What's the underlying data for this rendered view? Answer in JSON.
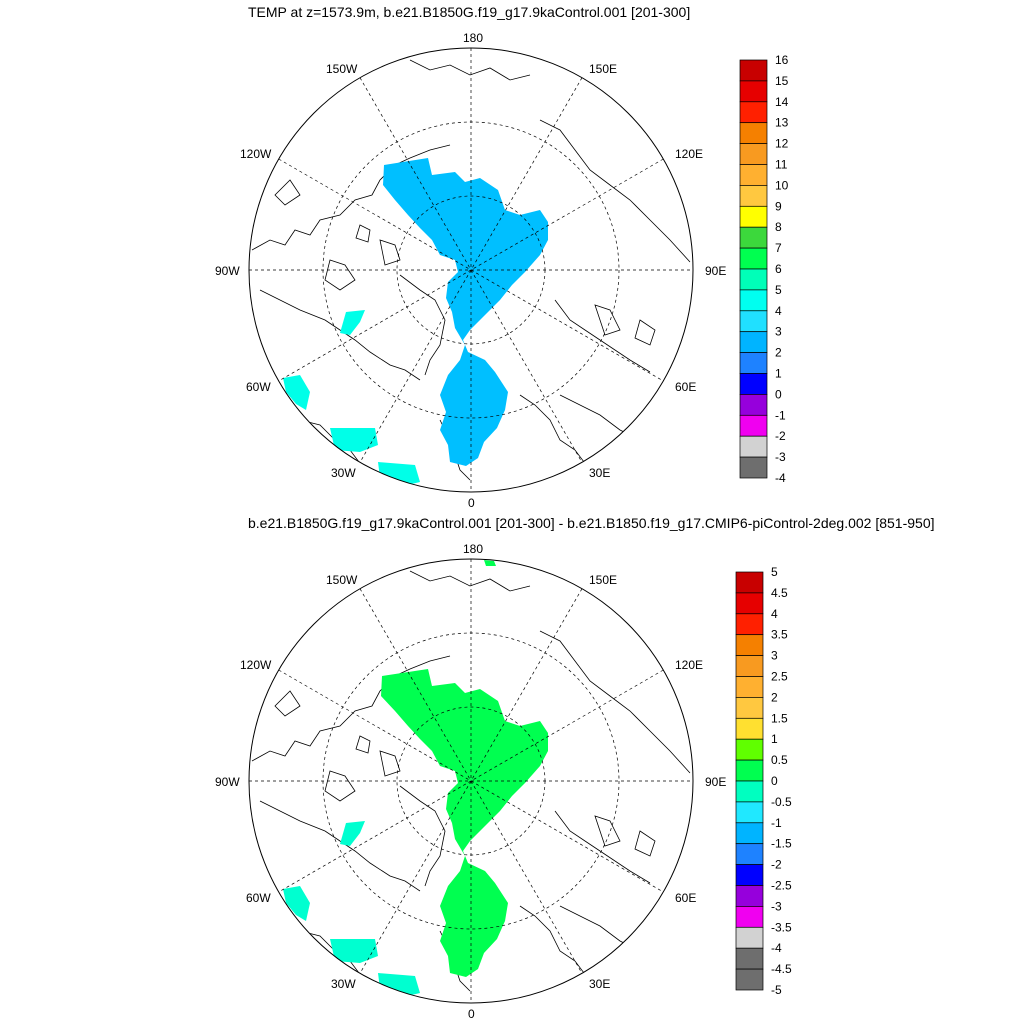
{
  "panels": [
    {
      "title": "TEMP at z=1573.9m, b.e21.B1850G.f19_g17.9kaControl.001 [201-300]",
      "lon_labels": {
        "top": "180",
        "bottom": "0",
        "left": "90W",
        "right": "90E",
        "ul1": "150W",
        "ul2": "120W",
        "ur1": "150E",
        "ur2": "120E",
        "ll1": "60W",
        "ll2": "30W",
        "lr1": "60E",
        "lr2": "30E"
      },
      "colorbar": {
        "labels": [
          "16",
          "15",
          "14",
          "13",
          "12",
          "11",
          "10",
          "9",
          "8",
          "7",
          "6",
          "5",
          "4",
          "3",
          "2",
          "1",
          "0",
          "-1",
          "-2",
          "-3",
          "-4"
        ],
        "colors": [
          "#c80000",
          "#e60000",
          "#ff2000",
          "#f58000",
          "#f89a20",
          "#ffb030",
          "#ffc840",
          "#ffff00",
          "#3cd83c",
          "#00ff50",
          "#00ffb8",
          "#00fff0",
          "#20e0ff",
          "#00b4ff",
          "#1e82ff",
          "#0000ff",
          "#9600dc",
          "#f000f0",
          "#d2d2d2",
          "#6e6e6e"
        ]
      },
      "fill_color": "#00bfff",
      "patch_color": "#00ffe8"
    },
    {
      "title": "b.e21.B1850G.f19_g17.9kaControl.001 [201-300] - b.e21.B1850.f19_g17.CMIP6-piControl-2deg.002 [851-950]",
      "lon_labels": {
        "top": "180",
        "bottom": "0",
        "left": "90W",
        "right": "90E",
        "ul1": "150W",
        "ul2": "120W",
        "ur1": "150E",
        "ur2": "120E",
        "ll1": "60W",
        "ll2": "30W",
        "lr1": "60E",
        "lr2": "30E"
      },
      "colorbar": {
        "labels": [
          "5",
          "4.5",
          "4",
          "3.5",
          "3",
          "2.5",
          "2",
          "1.5",
          "1",
          "0.5",
          "0",
          "-0.5",
          "-1",
          "-1.5",
          "-2",
          "-2.5",
          "-3",
          "-3.5",
          "-4",
          "-4.5",
          "-5"
        ],
        "colors": [
          "#c80000",
          "#e60000",
          "#ff2000",
          "#f58000",
          "#f89a20",
          "#ffb030",
          "#ffc840",
          "#ffe030",
          "#60ff00",
          "#00ff50",
          "#00ffc0",
          "#20e8ff",
          "#00b4ff",
          "#1e82ff",
          "#0000ff",
          "#9600dc",
          "#f000f0",
          "#d2d2d2",
          "#6e6e6e",
          "#6e6e6e"
        ]
      },
      "fill_color": "#00ff50",
      "patch_color": "#00ffd0"
    }
  ]
}
